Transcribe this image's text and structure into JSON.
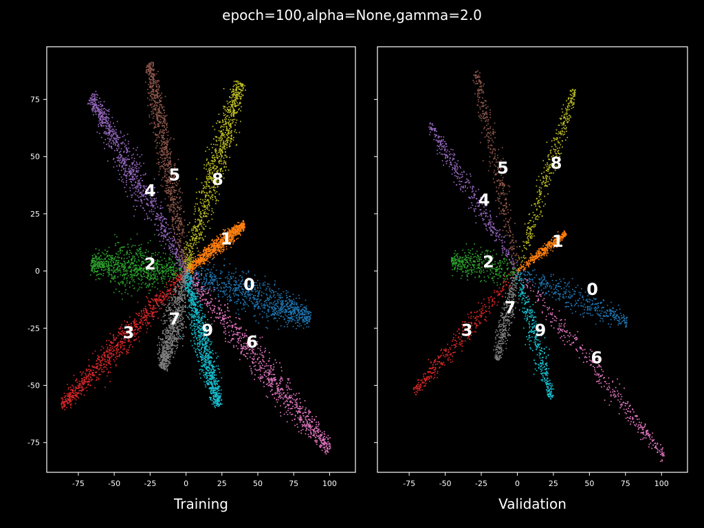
{
  "figure": {
    "title": "epoch=100,alpha=None,gamma=2.0",
    "background": "#000000",
    "foreground": "#ffffff"
  },
  "chart_data": [
    {
      "type": "scatter",
      "xlabel": "Training",
      "ylabel": "",
      "xlim": [
        -97,
        118
      ],
      "ylim": [
        -88,
        98
      ],
      "xticks": [
        -75,
        -50,
        -25,
        0,
        25,
        50,
        75,
        100
      ],
      "yticks": [
        -75,
        -50,
        -25,
        0,
        25,
        50,
        75
      ],
      "ytick_labels_visible": true,
      "grid": false,
      "clusters": [
        {
          "label": "0",
          "color": "#1f77b4",
          "center": [
            44,
            -6
          ],
          "tip": [
            85,
            -20
          ],
          "width": 7
        },
        {
          "label": "1",
          "color": "#ff7f0e",
          "center": [
            28,
            14
          ],
          "tip": [
            40,
            20
          ],
          "width": 3
        },
        {
          "label": "2",
          "color": "#2ca02c",
          "center": [
            -25,
            3
          ],
          "tip": [
            -65,
            3
          ],
          "width": 8
        },
        {
          "label": "3",
          "color": "#d62728",
          "center": [
            -40,
            -27
          ],
          "tip": [
            -85,
            -58
          ],
          "width": 5
        },
        {
          "label": "4",
          "color": "#9467bd",
          "center": [
            -25,
            35
          ],
          "tip": [
            -65,
            75
          ],
          "width": 6
        },
        {
          "label": "5",
          "color": "#8c564b",
          "center": [
            -8,
            42
          ],
          "tip": [
            -25,
            89
          ],
          "width": 5
        },
        {
          "label": "6",
          "color": "#e377c2",
          "center": [
            46,
            -31
          ],
          "tip": [
            98,
            -77
          ],
          "width": 6
        },
        {
          "label": "7",
          "color": "#7f7f7f",
          "center": [
            -8,
            -21
          ],
          "tip": [
            -16,
            -42
          ],
          "width": 6
        },
        {
          "label": "8",
          "color": "#bcbd22",
          "center": [
            22,
            40
          ],
          "tip": [
            37,
            81
          ],
          "width": 6
        },
        {
          "label": "9",
          "color": "#17becf",
          "center": [
            15,
            -26
          ],
          "tip": [
            22,
            -58
          ],
          "width": 5
        }
      ]
    },
    {
      "type": "scatter",
      "xlabel": "Validation",
      "ylabel": "",
      "xlim": [
        -97,
        118
      ],
      "ylim": [
        -88,
        98
      ],
      "xticks": [
        -75,
        -50,
        -25,
        0,
        25,
        50,
        75,
        100
      ],
      "yticks": [
        -75,
        -50,
        -25,
        0,
        25,
        50,
        75
      ],
      "ytick_labels_visible": false,
      "grid": false,
      "clusters": [
        {
          "label": "0",
          "color": "#1f77b4",
          "center": [
            52,
            -8
          ],
          "tip": [
            75,
            -22
          ],
          "width": 5
        },
        {
          "label": "1",
          "color": "#ff7f0e",
          "center": [
            28,
            13
          ],
          "tip": [
            33,
            16
          ],
          "width": 2
        },
        {
          "label": "2",
          "color": "#2ca02c",
          "center": [
            -20,
            4
          ],
          "tip": [
            -45,
            4
          ],
          "width": 6
        },
        {
          "label": "3",
          "color": "#d62728",
          "center": [
            -35,
            -26
          ],
          "tip": [
            -70,
            -52
          ],
          "width": 4
        },
        {
          "label": "4",
          "color": "#9467bd",
          "center": [
            -23,
            31
          ],
          "tip": [
            -60,
            63
          ],
          "width": 4
        },
        {
          "label": "5",
          "color": "#8c564b",
          "center": [
            -10,
            45
          ],
          "tip": [
            -28,
            86
          ],
          "width": 4
        },
        {
          "label": "6",
          "color": "#e377c2",
          "center": [
            55,
            -38
          ],
          "tip": [
            100,
            -80
          ],
          "width": 4
        },
        {
          "label": "7",
          "color": "#7f7f7f",
          "center": [
            -5,
            -16
          ],
          "tip": [
            -14,
            -38
          ],
          "width": 4
        },
        {
          "label": "8",
          "color": "#bcbd22",
          "center": [
            27,
            47
          ],
          "tip": [
            39,
            78
          ],
          "width": 4
        },
        {
          "label": "9",
          "color": "#17becf",
          "center": [
            16,
            -26
          ],
          "tip": [
            23,
            -55
          ],
          "width": 4
        }
      ]
    }
  ]
}
